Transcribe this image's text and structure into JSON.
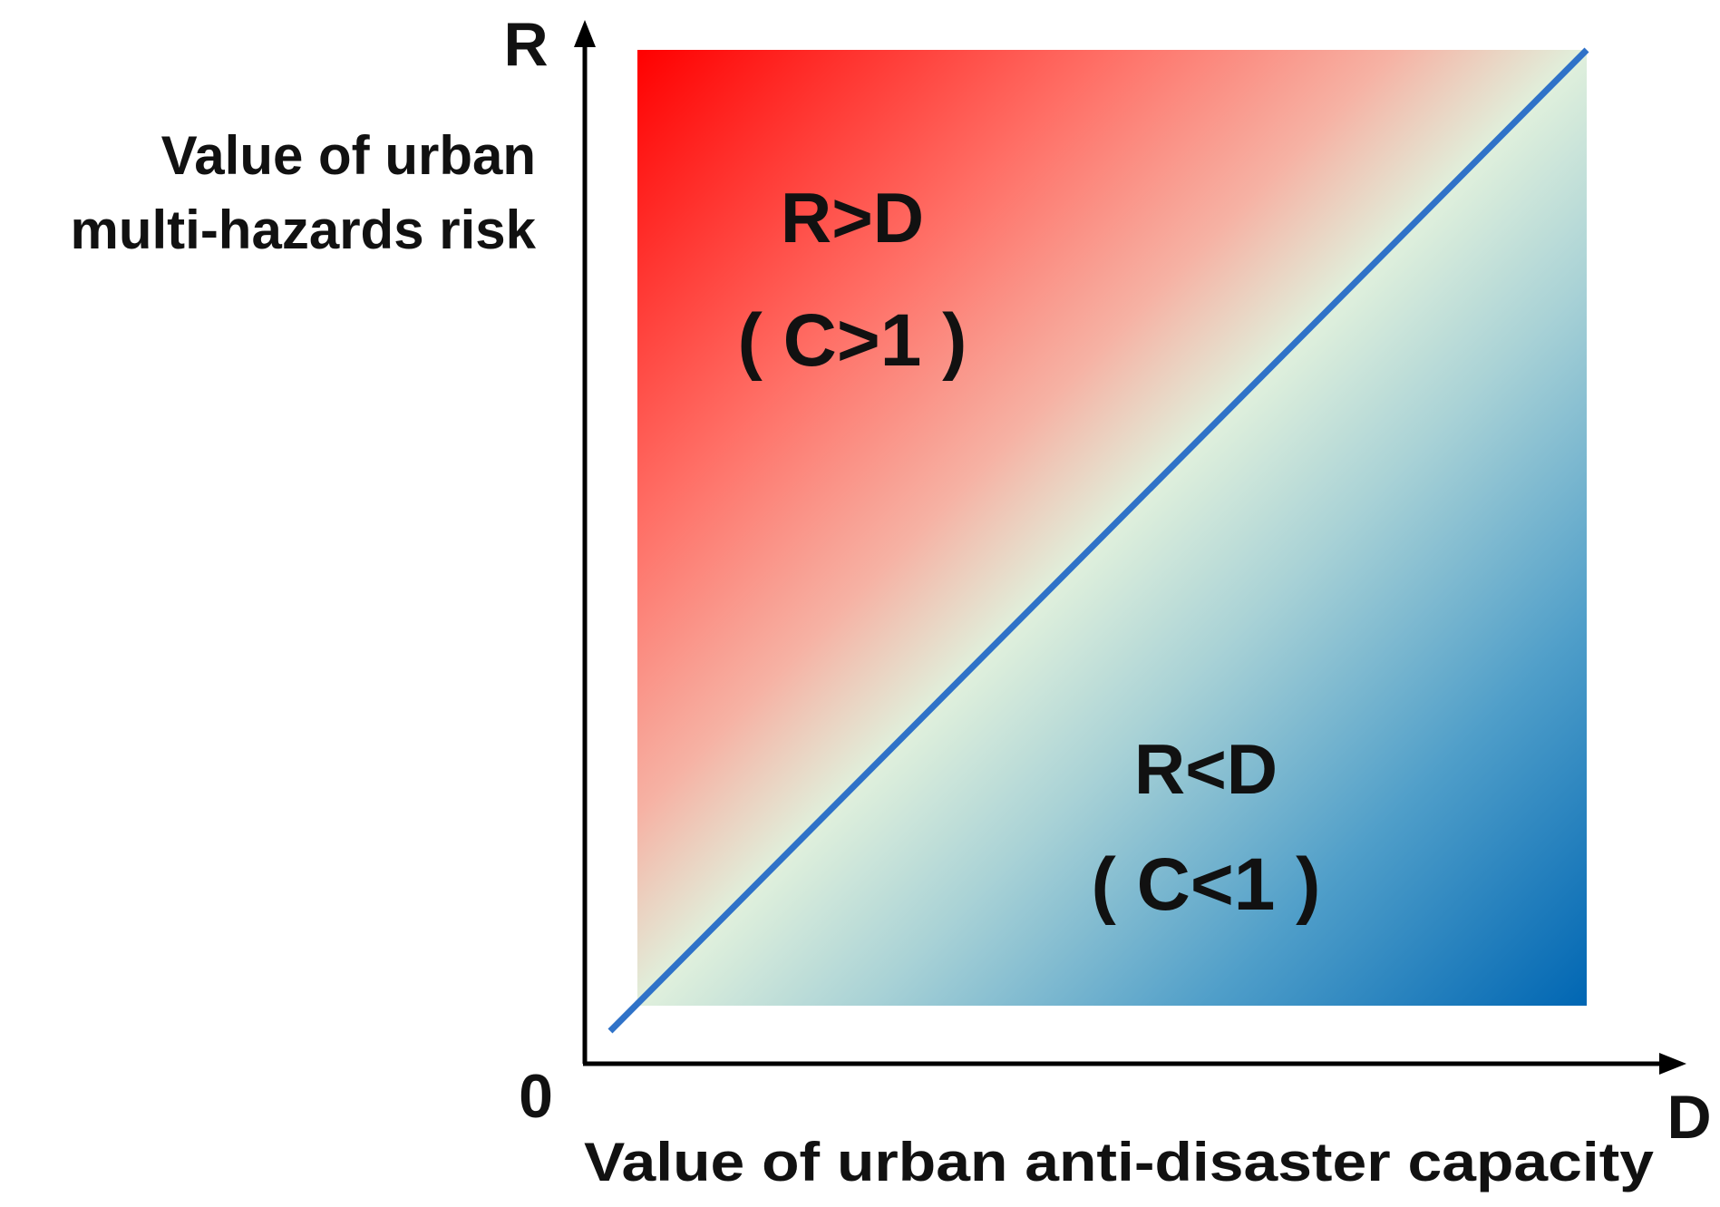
{
  "axes": {
    "y_symbol": "R",
    "x_symbol": "D",
    "origin": "0",
    "y_title_lines": [
      "Value of urban",
      "multi-hazards risk"
    ],
    "x_title": "Value of urban anti-disaster capacity"
  },
  "regions": {
    "upper": {
      "relation": "R>D",
      "condition": "( C>1 )"
    },
    "lower": {
      "relation": "R<D",
      "condition": "( C<1 )"
    }
  },
  "colors": {
    "high_risk": "#ff0000",
    "neutral": "#e0f0dc",
    "high_capacity": "#0066b3",
    "diagonal_line": "#2f72c8",
    "axis": "#000000"
  }
}
